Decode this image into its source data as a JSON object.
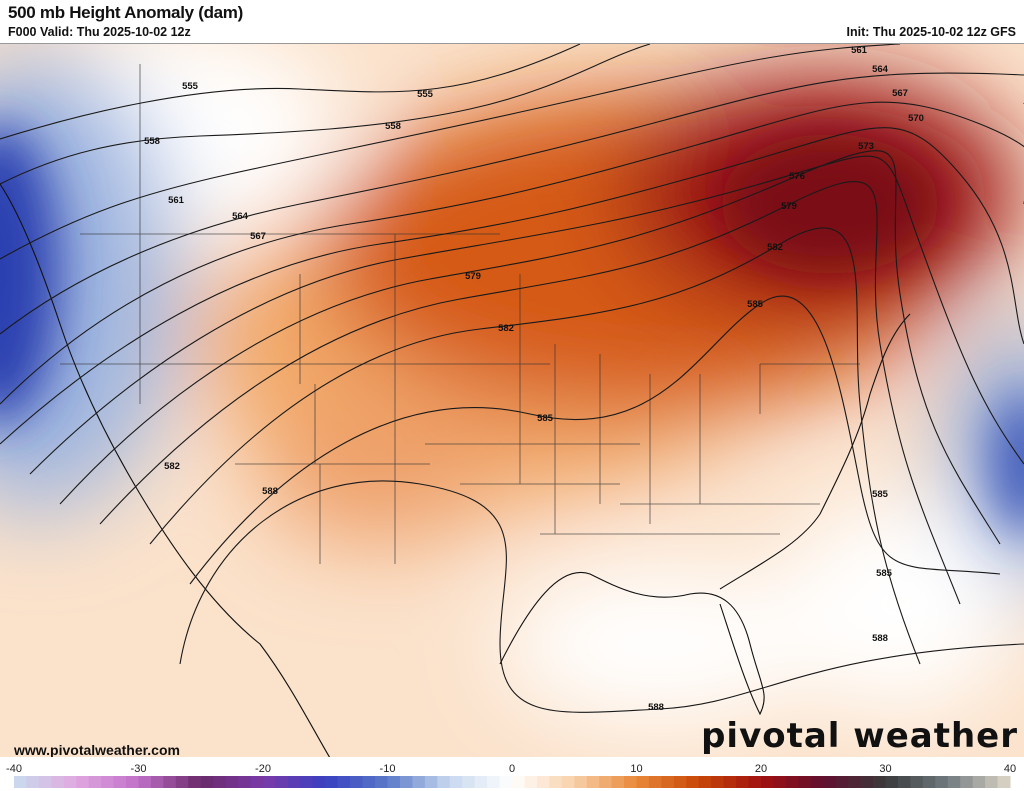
{
  "header": {
    "title": "500 mb Height Anomaly (dam)",
    "valid": "F000 Valid: Thu 2025-10-02 12z",
    "init": "Init: Thu 2025-10-02 12z GFS"
  },
  "footer": {
    "url": "www.pivotalweather.com",
    "logo": "pivotal weather"
  },
  "colorbar": {
    "min": -40,
    "max": 40,
    "ticks": [
      "-40",
      "-30",
      "-20",
      "-10",
      "0",
      "10",
      "20",
      "30",
      "40"
    ],
    "stops": [
      "#c8dcee",
      "#e0a8e0",
      "#c070c8",
      "#6a2a6a",
      "#7a3aa8",
      "#3a40c0",
      "#5a7ac8",
      "#c8d8ee",
      "#ffffff",
      "#f8d0a8",
      "#e88838",
      "#c84808",
      "#a01010",
      "#601030",
      "#3a3a3a",
      "#707a80",
      "#e0d8c8"
    ]
  },
  "contours": [
    {
      "value": "555"
    },
    {
      "value": "558"
    },
    {
      "value": "561"
    },
    {
      "value": "564"
    },
    {
      "value": "567"
    },
    {
      "value": "570"
    },
    {
      "value": "573"
    },
    {
      "value": "576"
    },
    {
      "value": "579"
    },
    {
      "value": "582"
    },
    {
      "value": "585"
    },
    {
      "value": "588"
    }
  ],
  "colors": {
    "positive": "#8b1010",
    "negative": "#2a3fb0",
    "neutral": "#ffffff",
    "contour": "#1a1a1a"
  }
}
